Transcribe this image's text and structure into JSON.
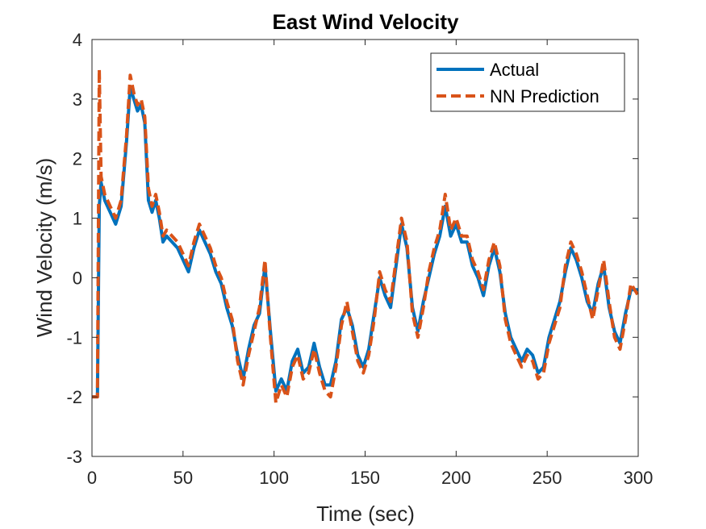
{
  "chart_data": {
    "type": "line",
    "title": "East Wind Velocity",
    "xlabel": "Time (sec)",
    "ylabel": "Wind Velocity (m/s)",
    "xlim": [
      0,
      300
    ],
    "ylim": [
      -3,
      4
    ],
    "xticks": [
      0,
      50,
      100,
      150,
      200,
      250,
      300
    ],
    "yticks": [
      -3,
      -2,
      -1,
      0,
      1,
      2,
      3,
      4
    ],
    "xtick_labels": [
      "0",
      "50",
      "100",
      "150",
      "200",
      "250",
      "300"
    ],
    "ytick_labels": [
      "-3",
      "-2",
      "-1",
      "0",
      "1",
      "2",
      "3",
      "4"
    ],
    "grid": false,
    "legend_position": "top-right",
    "series": [
      {
        "name": "Actual",
        "color": "#0072BD",
        "style": "solid",
        "x": [
          0,
          3,
          4,
          5,
          7,
          10,
          13,
          16,
          19,
          21,
          23,
          25,
          27,
          29,
          31,
          33,
          35,
          37,
          39,
          41,
          44,
          47,
          50,
          53,
          56,
          59,
          62,
          65,
          68,
          71,
          74,
          77,
          80,
          83,
          86,
          89,
          92,
          95,
          98,
          101,
          104,
          107,
          110,
          113,
          116,
          119,
          122,
          125,
          128,
          131,
          134,
          137,
          140,
          143,
          146,
          149,
          152,
          155,
          158,
          161,
          164,
          167,
          170,
          173,
          176,
          179,
          182,
          185,
          188,
          191,
          194,
          197,
          200,
          203,
          206,
          209,
          212,
          215,
          218,
          221,
          224,
          227,
          230,
          233,
          236,
          239,
          242,
          245,
          248,
          251,
          254,
          257,
          260,
          263,
          266,
          269,
          272,
          275,
          278,
          281,
          284,
          287,
          290,
          293,
          296,
          300
        ],
        "y": [
          -2.0,
          -2.0,
          1.2,
          1.6,
          1.3,
          1.1,
          0.9,
          1.2,
          2.3,
          3.2,
          3.0,
          2.8,
          2.9,
          2.6,
          1.3,
          1.1,
          1.3,
          1.0,
          0.6,
          0.7,
          0.6,
          0.5,
          0.3,
          0.1,
          0.5,
          0.8,
          0.6,
          0.4,
          0.1,
          -0.1,
          -0.5,
          -0.8,
          -1.3,
          -1.7,
          -1.2,
          -0.8,
          -0.6,
          0.2,
          -0.9,
          -1.9,
          -1.7,
          -1.9,
          -1.4,
          -1.2,
          -1.6,
          -1.5,
          -1.1,
          -1.5,
          -1.8,
          -1.8,
          -1.4,
          -0.7,
          -0.5,
          -0.8,
          -1.3,
          -1.5,
          -1.2,
          -0.6,
          0.0,
          -0.3,
          -0.5,
          0.2,
          0.9,
          0.5,
          -0.5,
          -0.9,
          -0.4,
          0.0,
          0.4,
          0.7,
          1.2,
          0.7,
          0.9,
          0.6,
          0.6,
          0.2,
          0.0,
          -0.3,
          0.2,
          0.5,
          0.1,
          -0.6,
          -1.0,
          -1.2,
          -1.4,
          -1.2,
          -1.3,
          -1.6,
          -1.5,
          -1.0,
          -0.7,
          -0.4,
          0.1,
          0.5,
          0.3,
          0.0,
          -0.4,
          -0.6,
          -0.1,
          0.2,
          -0.5,
          -0.9,
          -1.1,
          -0.6,
          -0.2,
          -0.2
        ]
      },
      {
        "name": "NN Prediction",
        "color": "#D95319",
        "style": "dashed",
        "x": [
          0,
          3,
          4,
          5,
          7,
          10,
          13,
          16,
          19,
          21,
          23,
          25,
          27,
          29,
          31,
          33,
          35,
          37,
          39,
          41,
          44,
          47,
          50,
          53,
          56,
          59,
          62,
          65,
          68,
          71,
          74,
          77,
          80,
          83,
          86,
          89,
          92,
          95,
          98,
          101,
          104,
          107,
          110,
          113,
          116,
          119,
          122,
          125,
          128,
          131,
          134,
          137,
          140,
          143,
          146,
          149,
          152,
          155,
          158,
          161,
          164,
          167,
          170,
          173,
          176,
          179,
          182,
          185,
          188,
          191,
          194,
          197,
          200,
          203,
          206,
          209,
          212,
          215,
          218,
          221,
          224,
          227,
          230,
          233,
          236,
          239,
          242,
          245,
          248,
          251,
          254,
          257,
          260,
          263,
          266,
          269,
          272,
          275,
          278,
          281,
          284,
          287,
          290,
          293,
          296,
          300
        ],
        "y": [
          -2.0,
          -2.0,
          3.5,
          1.7,
          1.4,
          1.2,
          1.0,
          1.3,
          2.4,
          3.4,
          3.1,
          2.9,
          3.0,
          2.7,
          1.5,
          1.2,
          1.4,
          1.1,
          0.7,
          0.8,
          0.7,
          0.6,
          0.4,
          0.2,
          0.6,
          0.9,
          0.7,
          0.5,
          0.2,
          0.0,
          -0.4,
          -0.7,
          -1.4,
          -1.8,
          -1.3,
          -0.9,
          -0.5,
          0.3,
          -1.0,
          -2.1,
          -1.8,
          -2.0,
          -1.5,
          -1.3,
          -1.7,
          -1.6,
          -1.2,
          -1.6,
          -1.9,
          -2.0,
          -1.5,
          -0.8,
          -0.4,
          -0.9,
          -1.4,
          -1.6,
          -1.3,
          -0.7,
          0.1,
          -0.2,
          -0.4,
          0.3,
          1.0,
          0.6,
          -0.6,
          -1.0,
          -0.5,
          0.1,
          0.5,
          0.8,
          1.4,
          0.8,
          1.0,
          0.7,
          0.7,
          0.3,
          0.1,
          -0.2,
          0.3,
          0.6,
          0.2,
          -0.7,
          -1.1,
          -1.3,
          -1.5,
          -1.3,
          -1.4,
          -1.7,
          -1.6,
          -1.1,
          -0.8,
          -0.5,
          0.2,
          0.6,
          0.4,
          0.1,
          -0.3,
          -0.7,
          -0.2,
          0.3,
          -0.4,
          -1.0,
          -1.2,
          -0.7,
          -0.1,
          -0.3
        ]
      }
    ]
  },
  "style": {
    "axis_color": "#262626",
    "background": "#ffffff"
  }
}
